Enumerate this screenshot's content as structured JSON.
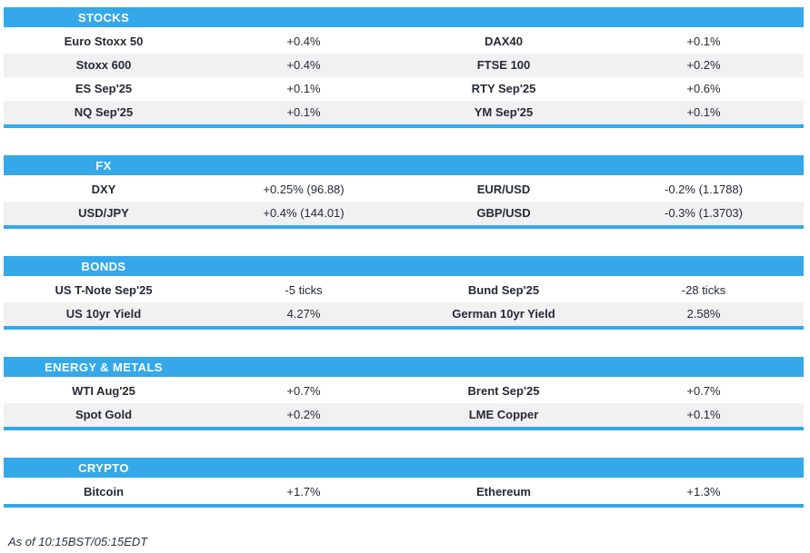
{
  "colors": {
    "accent": "#34A8E8",
    "row_alt": "#F1F1F2",
    "text": "#262A35",
    "header_text": "#FFFFFF",
    "footer_text": "#2A3140"
  },
  "sections": [
    {
      "title": "STOCKS",
      "rows": [
        [
          "Euro Stoxx 50",
          "+0.4%",
          "DAX40",
          "+0.1%"
        ],
        [
          "Stoxx 600",
          "+0.4%",
          "FTSE 100",
          "+0.2%"
        ],
        [
          "ES Sep'25",
          "+0.1%",
          "RTY Sep'25",
          "+0.6%"
        ],
        [
          "NQ Sep'25",
          "+0.1%",
          "YM Sep'25",
          "+0.1%"
        ]
      ]
    },
    {
      "title": "FX",
      "rows": [
        [
          "DXY",
          "+0.25% (96.88)",
          "EUR/USD",
          "-0.2% (1.1788)"
        ],
        [
          "USD/JPY",
          "+0.4% (144.01)",
          "GBP/USD",
          "-0.3% (1.3703)"
        ]
      ]
    },
    {
      "title": "BONDS",
      "rows": [
        [
          "US T-Note Sep'25",
          "-5 ticks",
          "Bund Sep'25",
          "-28 ticks"
        ],
        [
          "US 10yr Yield",
          "4.27%",
          "German 10yr Yield",
          "2.58%"
        ]
      ]
    },
    {
      "title": "ENERGY & METALS",
      "rows": [
        [
          "WTI Aug'25",
          "+0.7%",
          "Brent Sep'25",
          "+0.7%"
        ],
        [
          "Spot Gold",
          "+0.2%",
          "LME Copper",
          "+0.1%"
        ]
      ]
    },
    {
      "title": "CRYPTO",
      "rows": [
        [
          "Bitcoin",
          "+1.7%",
          "Ethereum",
          "+1.3%"
        ]
      ]
    }
  ],
  "footer": {
    "as_of": "As of 10:15BST/05:15EDT"
  }
}
